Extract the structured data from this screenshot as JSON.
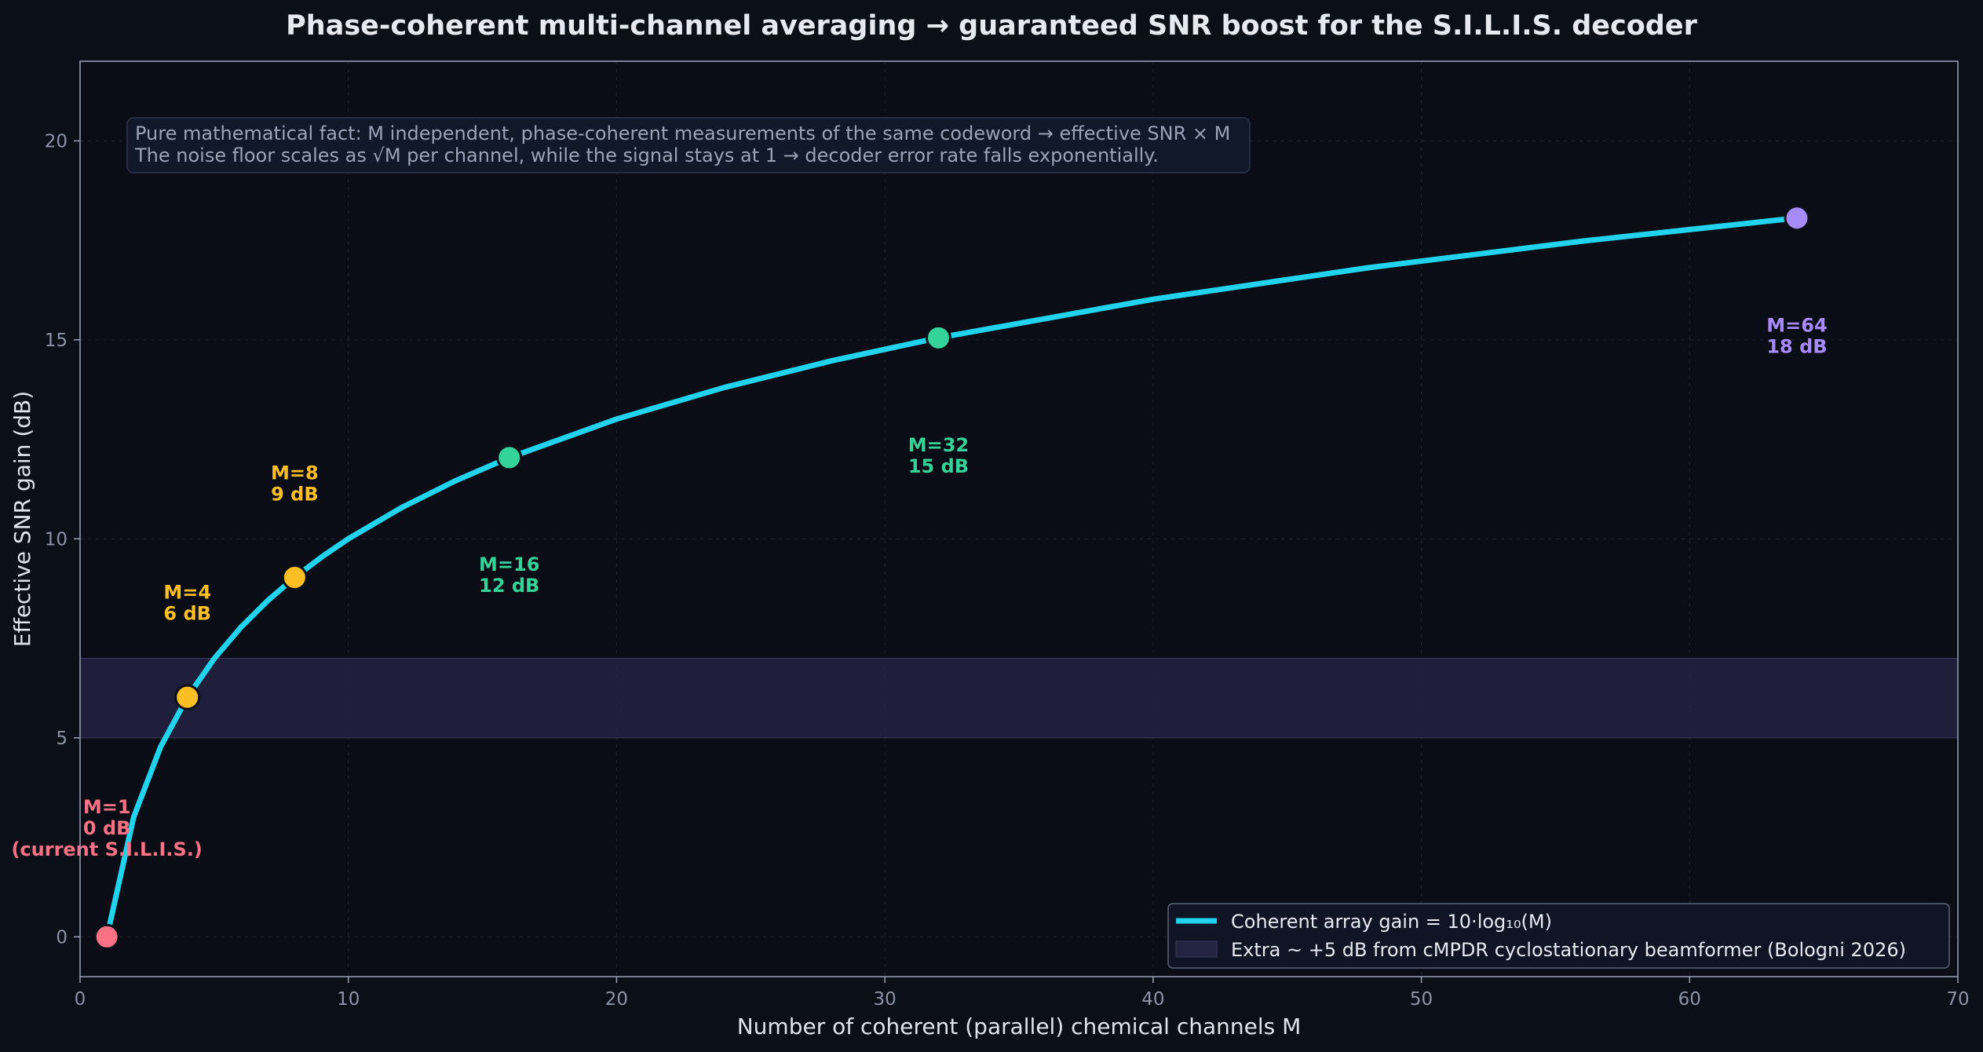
{
  "chart_data": {
    "type": "line",
    "title": "Phase-coherent multi-channel averaging  →  guaranteed SNR boost for the S.I.L.I.S. decoder",
    "xlabel": "Number of coherent (parallel) chemical channels  M",
    "ylabel": "Effective SNR gain (dB)",
    "xlim": [
      0,
      70
    ],
    "ylim": [
      -1,
      22
    ],
    "xticks": [
      0,
      10,
      20,
      30,
      40,
      50,
      60,
      70
    ],
    "yticks": [
      0,
      5,
      10,
      15,
      20
    ],
    "grid": true,
    "legend_position": "lower-right",
    "series": [
      {
        "name": "Coherent array gain  =  10·log₁₀(M)",
        "formula": "10*log10(M)",
        "x": [
          1,
          2,
          3,
          4,
          5,
          6,
          7,
          8,
          9,
          10,
          12,
          14,
          16,
          20,
          24,
          28,
          32,
          40,
          48,
          56,
          64
        ],
        "y": [
          0,
          3.01,
          4.77,
          6.02,
          6.99,
          7.78,
          8.45,
          9.03,
          9.54,
          10,
          10.79,
          11.46,
          12.04,
          13.01,
          13.8,
          14.47,
          15.05,
          16.02,
          16.81,
          17.48,
          18.06
        ],
        "color": "#22d3ee"
      }
    ],
    "band": {
      "name": "Extra  ~ +5 dB  from cMPDR cyclostationary beamformer (Bologni 2026)",
      "y_from": 5,
      "y_to": 7,
      "color": "#2a2a4a"
    },
    "markers": [
      {
        "x": 1,
        "y": 0,
        "color": "#f87185",
        "label_lines": [
          "M=1",
          "0 dB",
          "(current S.I.L.I.S.)"
        ],
        "label_x": 1,
        "label_y": 3.1
      },
      {
        "x": 4,
        "y": 6.02,
        "color": "#fbbf24",
        "label_lines": [
          "M=4",
          "6 dB"
        ],
        "label_x": 4,
        "label_y": 8.5
      },
      {
        "x": 8,
        "y": 9.03,
        "color": "#fbbf24",
        "label_lines": [
          "M=8",
          "9 dB"
        ],
        "label_x": 8,
        "label_y": 11.5
      },
      {
        "x": 16,
        "y": 12.04,
        "color": "#34d399",
        "label_lines": [
          "M=16",
          "12 dB"
        ],
        "label_x": 16,
        "label_y": 9.2
      },
      {
        "x": 32,
        "y": 15.05,
        "color": "#34d399",
        "label_lines": [
          "M=32",
          "15 dB"
        ],
        "label_x": 32,
        "label_y": 12.2
      },
      {
        "x": 64,
        "y": 18.06,
        "color": "#a78bfa",
        "label_lines": [
          "M=64",
          "18 dB"
        ],
        "label_x": 64,
        "label_y": 15.2
      }
    ],
    "note": [
      "Pure mathematical fact:  M independent, phase-coherent measurements of the same codeword  →  effective SNR  ×  M",
      "The noise floor scales as  √M  per channel,  while the signal stays at 1  →  decoder error rate falls exponentially."
    ]
  },
  "colors": {
    "background": "#0b0f17",
    "plot_background": "#0a0d15",
    "axis": "#9aa3b8",
    "line": "#22d3ee"
  }
}
